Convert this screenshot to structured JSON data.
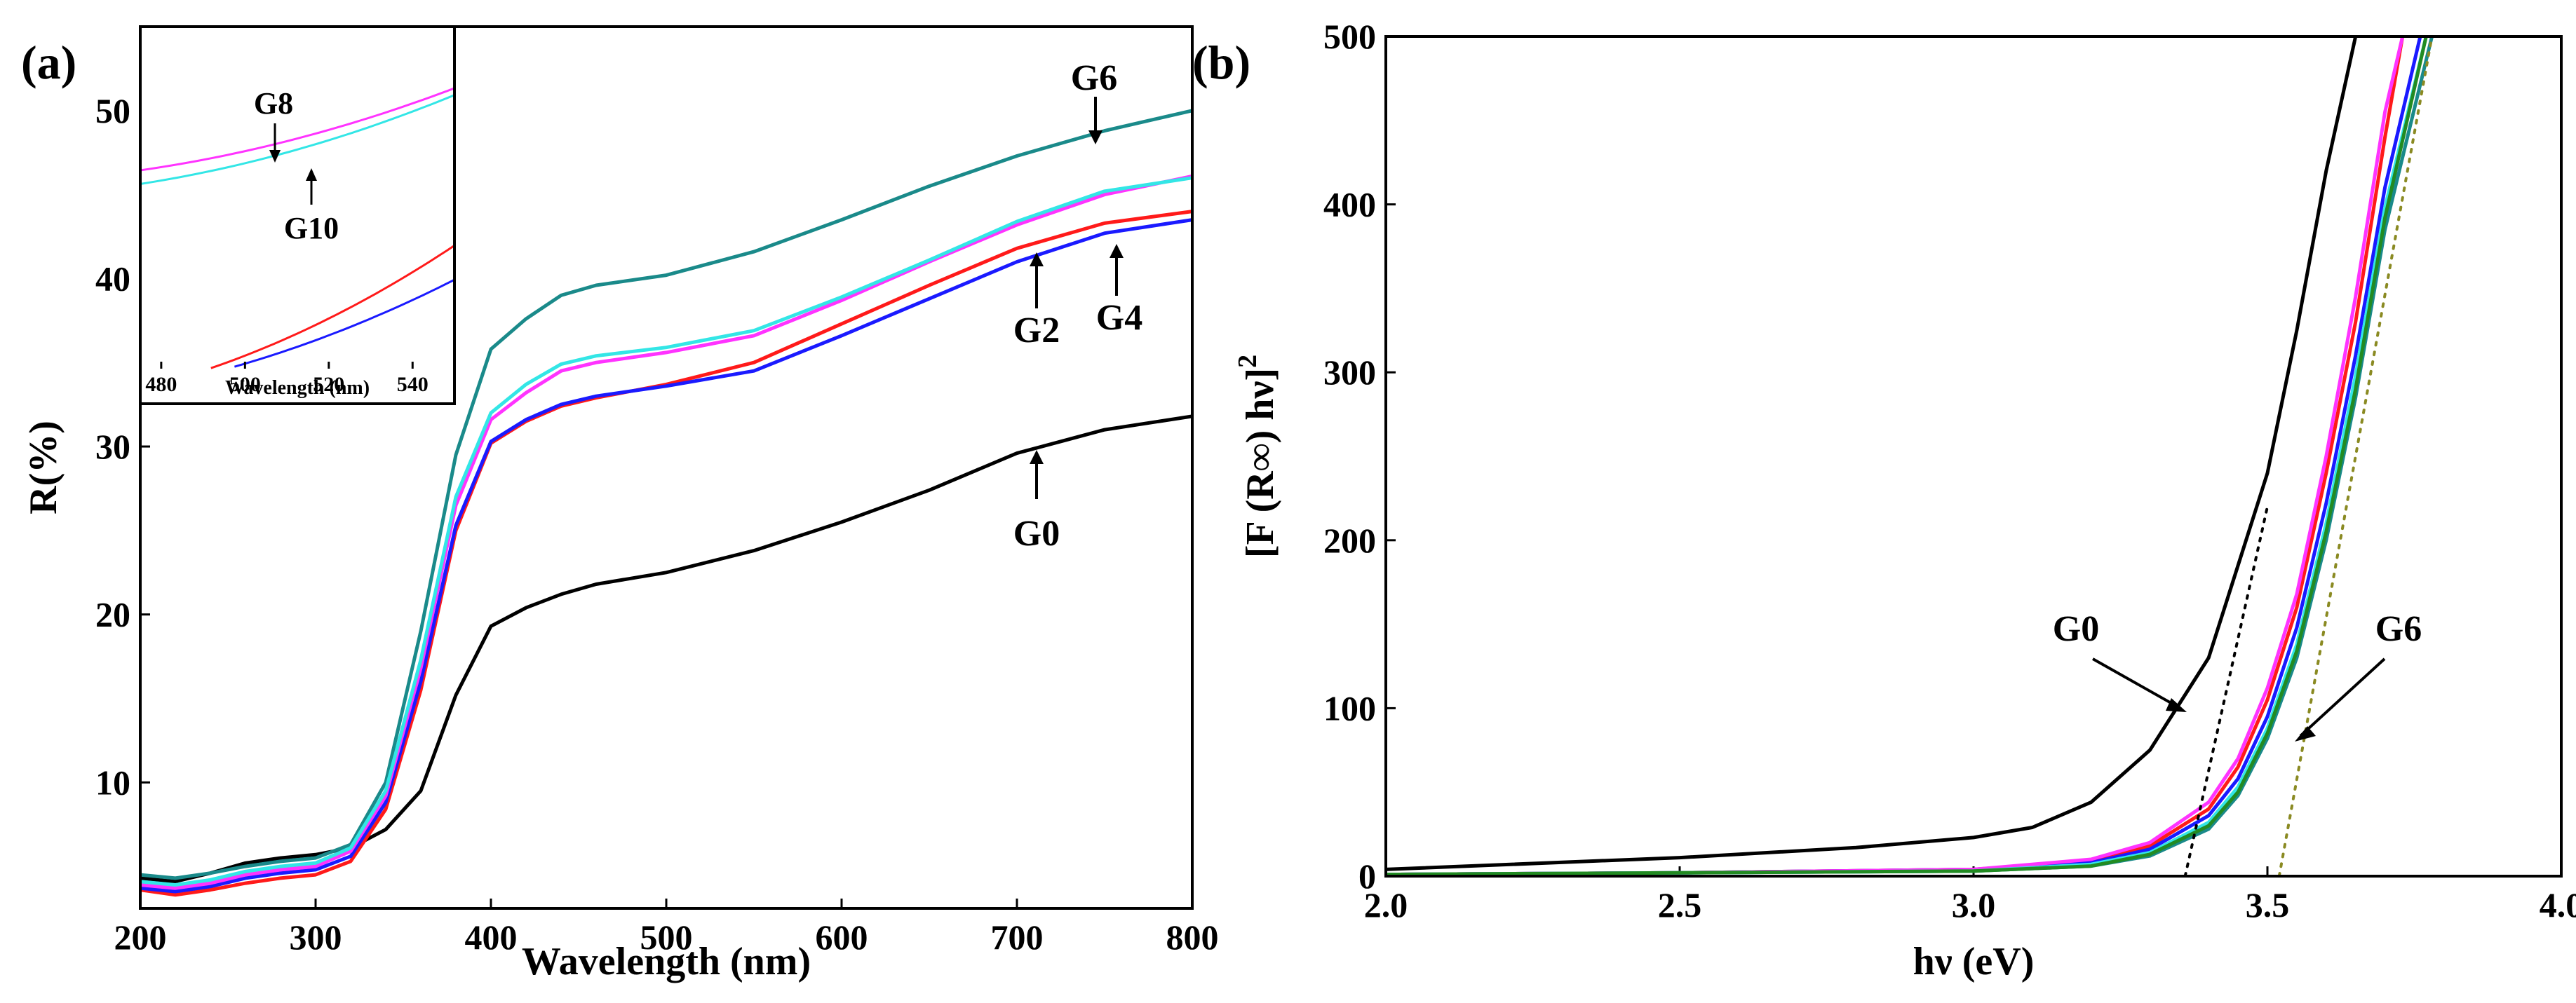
{
  "chart_data": [
    {
      "panel": "(a)",
      "type": "line",
      "xlabel": "Wavelength (nm)",
      "ylabel": "R(%)",
      "xlim": [
        200,
        800
      ],
      "ylim": [
        2.5,
        55
      ],
      "xticks": [
        200,
        300,
        400,
        500,
        600,
        700,
        800
      ],
      "yticks": [
        10,
        20,
        30,
        40,
        50
      ],
      "x": [
        200,
        220,
        240,
        260,
        280,
        300,
        320,
        340,
        360,
        380,
        400,
        420,
        440,
        460,
        500,
        550,
        600,
        650,
        700,
        750,
        800
      ],
      "series": [
        {
          "name": "G0",
          "color": "#000000",
          "values": [
            4.3,
            4.1,
            4.6,
            5.2,
            5.5,
            5.7,
            6.1,
            7.2,
            9.5,
            15.2,
            19.3,
            20.4,
            21.2,
            21.8,
            22.5,
            23.8,
            25.5,
            27.4,
            29.6,
            31.0,
            31.8
          ]
        },
        {
          "name": "G2",
          "color": "#ff1a1a",
          "values": [
            3.6,
            3.3,
            3.6,
            4.0,
            4.3,
            4.5,
            5.3,
            8.4,
            15.5,
            25.0,
            30.2,
            31.5,
            32.4,
            32.9,
            33.7,
            35.0,
            37.3,
            39.6,
            41.8,
            43.3,
            44.0
          ]
        },
        {
          "name": "G4",
          "color": "#1a1aff",
          "values": [
            3.7,
            3.5,
            3.8,
            4.3,
            4.6,
            4.8,
            5.6,
            8.8,
            16.0,
            25.3,
            30.3,
            31.6,
            32.5,
            33.0,
            33.6,
            34.5,
            36.6,
            38.8,
            41.0,
            42.7,
            43.5
          ]
        },
        {
          "name": "G6",
          "color": "#1a8a8a",
          "values": [
            4.5,
            4.3,
            4.6,
            5.0,
            5.3,
            5.5,
            6.3,
            10.0,
            19.0,
            29.5,
            35.8,
            37.6,
            39.0,
            39.6,
            40.2,
            41.6,
            43.5,
            45.5,
            47.3,
            48.8,
            50.0
          ]
        },
        {
          "name": "G8",
          "color": "#ff33ff",
          "values": [
            3.9,
            3.7,
            4.0,
            4.5,
            4.8,
            5.0,
            5.9,
            9.2,
            16.8,
            26.5,
            31.6,
            33.2,
            34.5,
            35.0,
            35.6,
            36.6,
            38.7,
            41.0,
            43.2,
            45.0,
            46.1
          ]
        },
        {
          "name": "G10",
          "color": "#33e6e6",
          "values": [
            4.1,
            3.9,
            4.2,
            4.7,
            5.0,
            5.2,
            6.1,
            9.5,
            17.3,
            27.0,
            32.0,
            33.7,
            34.9,
            35.4,
            35.9,
            36.9,
            38.9,
            41.1,
            43.4,
            45.2,
            46.0
          ]
        }
      ],
      "annotations": [
        "G6",
        "G2",
        "G4",
        "G0"
      ],
      "inset": {
        "xlabel": "Wavelength (nm)",
        "xlim": [
          475,
          550
        ],
        "ylim": [
          29.5,
          34.5
        ],
        "xticks": [
          480,
          500,
          520,
          540
        ],
        "annotations": [
          "G8",
          "G10"
        ]
      }
    },
    {
      "panel": "(b)",
      "type": "line",
      "xlabel": "hν (eV)",
      "ylabel": "[F (R∞) hν]",
      "ylabel_sup": "2",
      "xlim": [
        2.0,
        4.0
      ],
      "ylim": [
        0,
        500
      ],
      "xticks": [
        2.0,
        2.5,
        3.0,
        3.5,
        4.0
      ],
      "yticks": [
        0,
        100,
        200,
        300,
        400,
        500
      ],
      "series": [
        {
          "name": "G0",
          "color": "#000000",
          "x": [
            2.0,
            2.5,
            2.8,
            3.0,
            3.1,
            3.2,
            3.3,
            3.4,
            3.5,
            3.55,
            3.6,
            3.65
          ],
          "values": [
            4,
            11,
            17,
            23,
            29,
            44,
            75,
            130,
            240,
            325,
            420,
            500
          ]
        },
        {
          "name": "G2",
          "color": "#ff1a1a",
          "x": [
            2.0,
            2.5,
            3.0,
            3.2,
            3.3,
            3.4,
            3.45,
            3.5,
            3.55,
            3.6,
            3.65,
            3.7,
            3.73
          ],
          "values": [
            1,
            2,
            4,
            9,
            18,
            40,
            65,
            105,
            160,
            240,
            330,
            440,
            500
          ]
        },
        {
          "name": "G4",
          "color": "#1a1aff",
          "x": [
            2.0,
            2.5,
            3.0,
            3.2,
            3.3,
            3.4,
            3.45,
            3.5,
            3.55,
            3.6,
            3.65,
            3.7,
            3.76
          ],
          "values": [
            1,
            2,
            4,
            8,
            16,
            36,
            58,
            95,
            148,
            222,
            310,
            410,
            500
          ]
        },
        {
          "name": "G6",
          "color": "#1a8a8a",
          "x": [
            2.0,
            2.5,
            3.0,
            3.2,
            3.3,
            3.4,
            3.45,
            3.5,
            3.55,
            3.6,
            3.65,
            3.7,
            3.78
          ],
          "values": [
            1,
            2,
            3,
            6,
            12,
            28,
            48,
            82,
            130,
            200,
            285,
            385,
            500
          ]
        },
        {
          "name": "G8",
          "color": "#ff33ff",
          "x": [
            2.0,
            2.5,
            3.0,
            3.2,
            3.3,
            3.4,
            3.45,
            3.5,
            3.55,
            3.6,
            3.65,
            3.7,
            3.73
          ],
          "values": [
            1,
            2,
            4,
            10,
            20,
            44,
            70,
            112,
            168,
            250,
            345,
            455,
            500
          ]
        },
        {
          "name": "G10",
          "color": "#33e6e6",
          "x": [
            2.0,
            2.5,
            3.0,
            3.2,
            3.3,
            3.4,
            3.45,
            3.5,
            3.55,
            3.6,
            3.65,
            3.7,
            3.77
          ],
          "values": [
            1,
            2,
            3,
            7,
            14,
            32,
            53,
            88,
            138,
            210,
            298,
            398,
            500
          ]
        },
        {
          "name": "green",
          "color": "#228b22",
          "x": [
            2.0,
            2.5,
            3.0,
            3.2,
            3.3,
            3.4,
            3.45,
            3.5,
            3.55,
            3.6,
            3.65,
            3.7,
            3.77
          ],
          "values": [
            1,
            2,
            3,
            6,
            13,
            30,
            50,
            85,
            134,
            205,
            290,
            392,
            500
          ]
        }
      ],
      "tangents": [
        {
          "name": "G0",
          "color": "#000000",
          "style": "dotted",
          "x": [
            3.36,
            3.5
          ],
          "values": [
            0,
            220
          ]
        },
        {
          "name": "G6",
          "color": "#8a8a22",
          "style": "dotted",
          "x": [
            3.52,
            3.78
          ],
          "values": [
            0,
            500
          ]
        }
      ],
      "annotations": [
        "G0",
        "G6"
      ]
    }
  ]
}
